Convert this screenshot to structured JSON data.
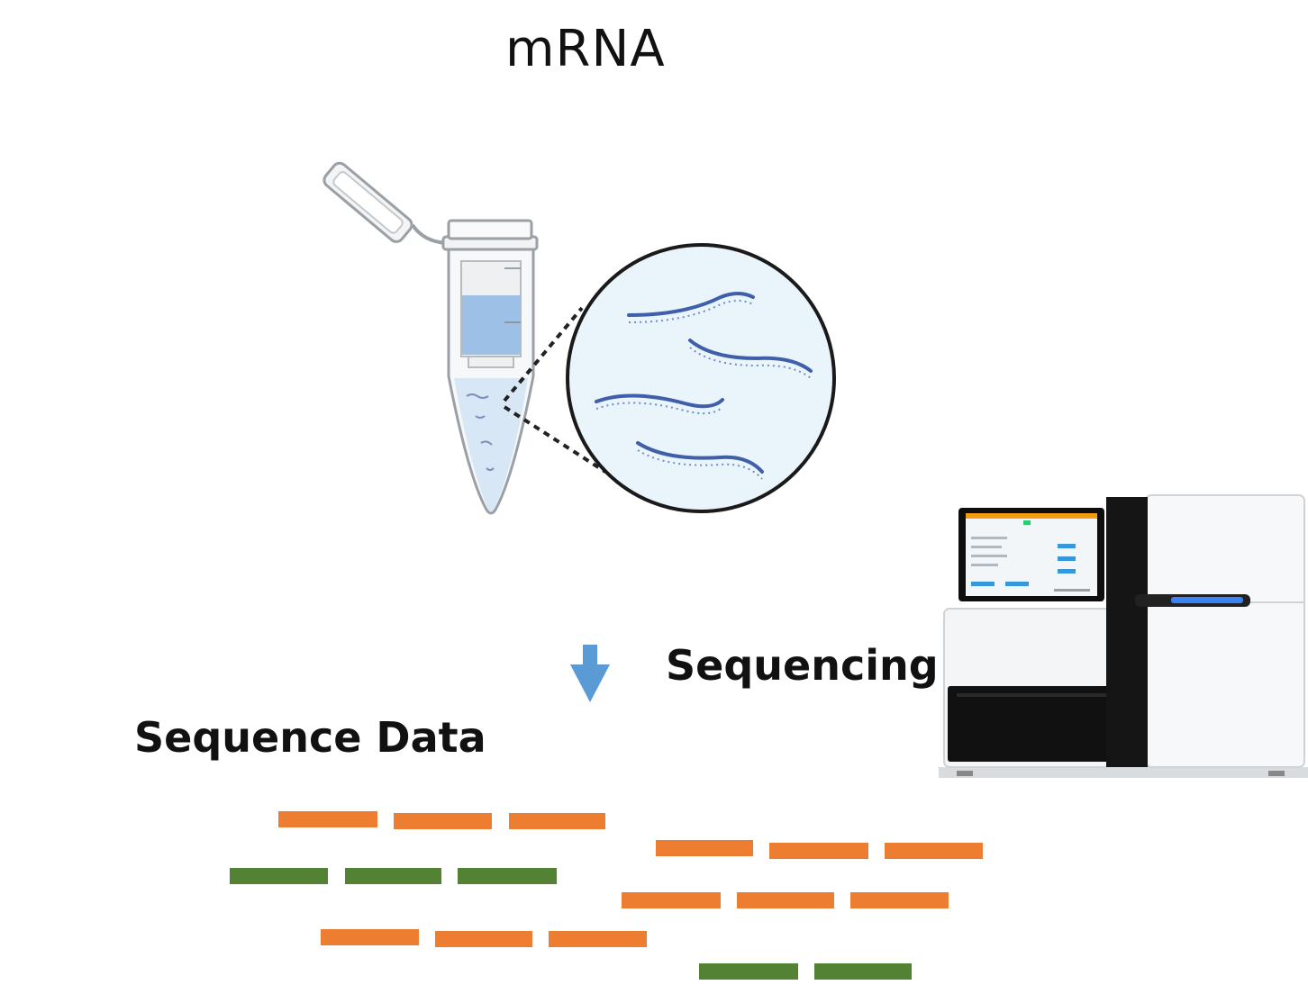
{
  "title": "mRNA",
  "step_label": "Sequencing",
  "output_label": "Sequence Data",
  "colors": {
    "orange_read": "#ed7d31",
    "green_read": "#548235",
    "arrow": "#5b9bd5",
    "liquid": "#9cc0e6",
    "magnifier_fill": "#eaf4fb",
    "rna_strand": "#3f5fa8"
  },
  "icons": [
    "microcentrifuge-tube-icon",
    "magnifier-icon",
    "down-arrow-icon",
    "sequencer-machine-icon"
  ],
  "reads": [
    {
      "color": "orange"
    },
    {
      "color": "orange"
    },
    {
      "color": "orange"
    },
    {
      "color": "orange"
    },
    {
      "color": "orange"
    },
    {
      "color": "orange"
    },
    {
      "color": "green"
    },
    {
      "color": "green"
    },
    {
      "color": "green"
    },
    {
      "color": "orange"
    },
    {
      "color": "orange"
    },
    {
      "color": "orange"
    },
    {
      "color": "orange"
    },
    {
      "color": "orange"
    },
    {
      "color": "orange"
    },
    {
      "color": "green"
    },
    {
      "color": "green"
    }
  ]
}
